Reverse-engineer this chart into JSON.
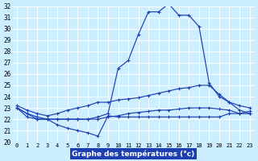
{
  "xlabel": "Graphe des températures (°c)",
  "xlim": [
    -0.5,
    23.5
  ],
  "ylim": [
    20,
    32
  ],
  "xticks": [
    0,
    1,
    2,
    3,
    4,
    5,
    6,
    7,
    8,
    9,
    10,
    11,
    12,
    13,
    14,
    15,
    16,
    17,
    18,
    19,
    20,
    21,
    22,
    23
  ],
  "yticks": [
    20,
    21,
    22,
    23,
    24,
    25,
    26,
    27,
    28,
    29,
    30,
    31,
    32
  ],
  "background_color": "#cceeff",
  "grid_color": "#ffffff",
  "line_color": "#1e3faf",
  "curves": {
    "curve1": {
      "x": [
        0,
        1,
        2,
        3,
        4,
        5,
        6,
        7,
        8,
        9,
        10,
        11,
        12,
        13,
        14,
        15,
        16,
        17,
        18,
        19,
        20,
        21,
        22,
        23
      ],
      "y": [
        23.0,
        22.5,
        22.0,
        22.0,
        22.0,
        22.0,
        22.0,
        22.0,
        22.2,
        22.5,
        26.5,
        27.2,
        29.5,
        31.5,
        31.5,
        32.2,
        31.2,
        31.2,
        30.2,
        25.2,
        24.0,
        23.5,
        22.8,
        22.5
      ]
    },
    "curve2": {
      "x": [
        0,
        1,
        2,
        3,
        4,
        5,
        6,
        7,
        8,
        9,
        10,
        11,
        12,
        13,
        14,
        15,
        16,
        17,
        18,
        19,
        20,
        21,
        22,
        23
      ],
      "y": [
        23.2,
        22.8,
        22.5,
        22.3,
        22.5,
        22.8,
        23.0,
        23.2,
        23.5,
        23.5,
        23.7,
        23.8,
        23.9,
        24.1,
        24.3,
        24.5,
        24.7,
        24.8,
        25.0,
        25.0,
        24.2,
        23.5,
        23.2,
        23.0
      ]
    },
    "curve3": {
      "x": [
        0,
        1,
        2,
        3,
        4,
        5,
        6,
        7,
        8,
        9,
        10,
        11,
        12,
        13,
        14,
        15,
        16,
        17,
        18,
        19,
        20,
        21,
        22,
        23
      ],
      "y": [
        23.0,
        22.5,
        22.2,
        22.0,
        22.0,
        22.0,
        22.0,
        22.0,
        22.0,
        22.2,
        22.3,
        22.5,
        22.6,
        22.7,
        22.8,
        22.8,
        22.9,
        23.0,
        23.0,
        23.0,
        22.9,
        22.8,
        22.5,
        22.5
      ]
    },
    "curve4": {
      "x": [
        0,
        1,
        2,
        3,
        4,
        5,
        6,
        7,
        8,
        9,
        10,
        11,
        12,
        13,
        14,
        15,
        16,
        17,
        18,
        19,
        20,
        21,
        22,
        23
      ],
      "y": [
        23.0,
        22.2,
        22.0,
        22.0,
        21.5,
        21.2,
        21.0,
        20.8,
        20.5,
        22.3,
        22.2,
        22.2,
        22.2,
        22.2,
        22.2,
        22.2,
        22.2,
        22.2,
        22.2,
        22.2,
        22.2,
        22.5,
        22.5,
        22.7
      ]
    }
  }
}
